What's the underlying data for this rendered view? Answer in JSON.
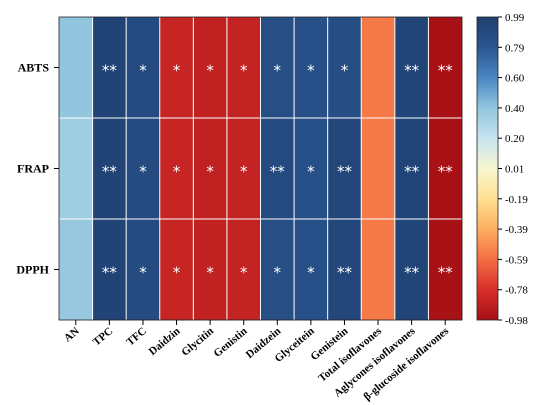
{
  "chart_data": {
    "type": "heatmap",
    "title": "",
    "xlabel": "",
    "ylabel": "",
    "rows": [
      "ABTS",
      "FRAP",
      "DPPH"
    ],
    "columns": [
      "AN",
      "TPC",
      "TFC",
      "Daidzin",
      "Glycitin",
      "Genistin",
      "Daidzein",
      "Glyceitein",
      "Genistein",
      "Total isoflavones",
      "Aglycones isoflavones",
      "β-glucoside isoflavones"
    ],
    "values": [
      [
        0.4,
        0.95,
        0.88,
        -0.85,
        -0.87,
        -0.86,
        0.85,
        0.84,
        0.86,
        -0.55,
        0.94,
        -0.97
      ],
      [
        0.35,
        0.95,
        0.88,
        -0.85,
        -0.87,
        -0.86,
        0.89,
        0.84,
        0.92,
        -0.55,
        0.94,
        -0.97
      ],
      [
        0.38,
        0.95,
        0.88,
        -0.85,
        -0.87,
        -0.86,
        0.85,
        0.84,
        0.92,
        -0.55,
        0.94,
        -0.97
      ]
    ],
    "significance": [
      [
        "",
        "**",
        "*",
        "*",
        "*",
        "*",
        "*",
        "*",
        "*",
        "",
        "**",
        "**"
      ],
      [
        "",
        "**",
        "*",
        "*",
        "*",
        "*",
        "**",
        "*",
        "**",
        "",
        "**",
        "**"
      ],
      [
        "",
        "**",
        "*",
        "*",
        "*",
        "*",
        "*",
        "*",
        "**",
        "",
        "**",
        "**"
      ]
    ],
    "colorbar": {
      "min": -0.98,
      "max": 0.99,
      "ticks": [
        "0.99",
        "0.79",
        "0.60",
        "0.40",
        "0.20",
        "0.01",
        "-0.19",
        "-0.39",
        "-0.59",
        "-0.78",
        "-0.98"
      ],
      "colors": [
        "#a50f15",
        "#d7302a",
        "#f46d43",
        "#fdae61",
        "#fee090",
        "#f7f7d0",
        "#c6e4f0",
        "#92c5de",
        "#4a86c3",
        "#2b5590",
        "#1e3f6e"
      ]
    },
    "grid": true
  }
}
